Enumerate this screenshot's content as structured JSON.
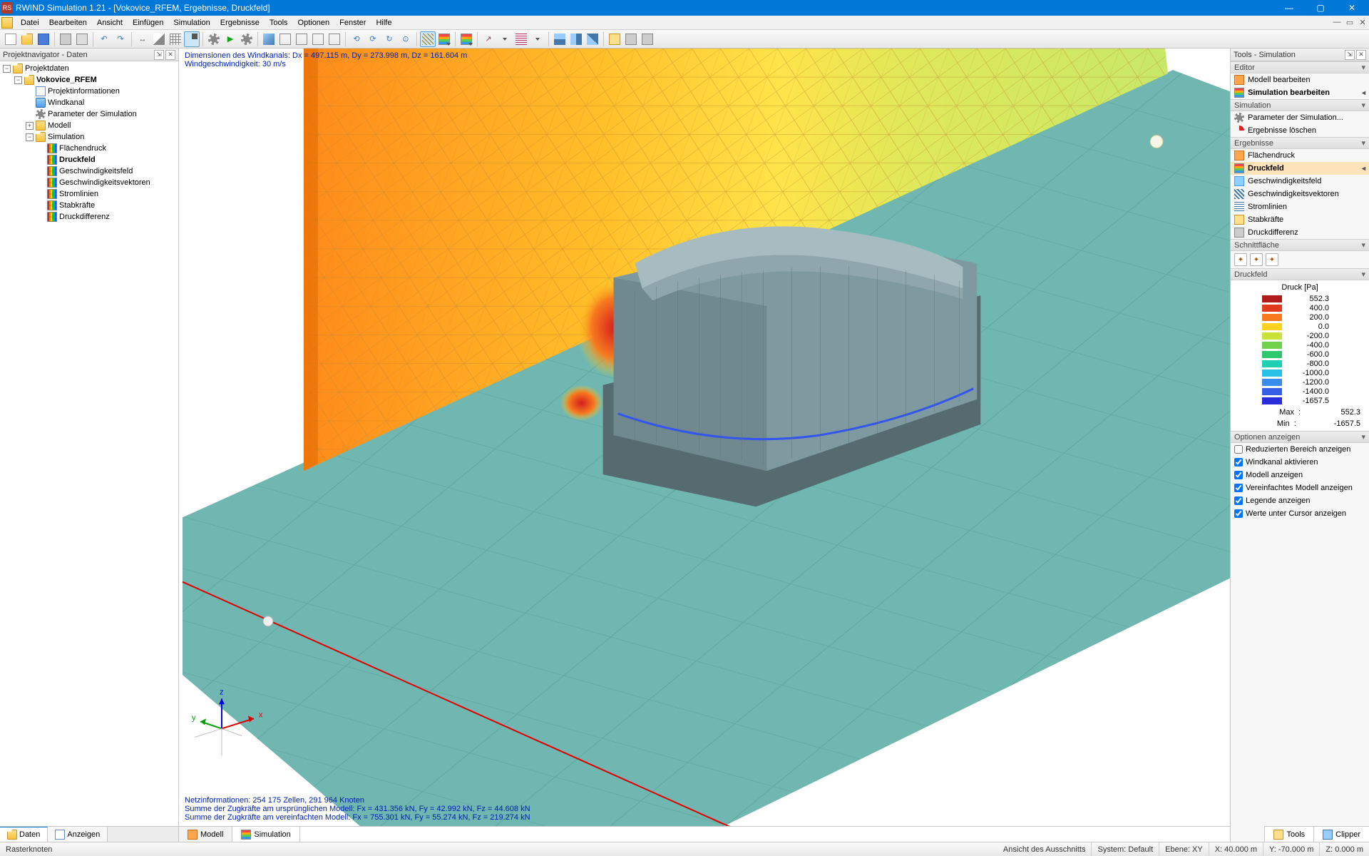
{
  "title": "RWIND Simulation 1.21 - [Vokovice_RFEM, Ergebnisse, Druckfeld]",
  "menu": [
    "Datei",
    "Bearbeiten",
    "Ansicht",
    "Einfügen",
    "Simulation",
    "Ergebnisse",
    "Tools",
    "Optionen",
    "Fenster",
    "Hilfe"
  ],
  "left_panel": {
    "title": "Projektnavigator - Daten",
    "tabs": [
      {
        "label": "Daten",
        "active": true
      },
      {
        "label": "Anzeigen",
        "active": false
      }
    ],
    "tree": [
      {
        "depth": 0,
        "exp": "-",
        "icon": "folder-open",
        "label": "Projektdaten",
        "bold": false
      },
      {
        "depth": 1,
        "exp": "-",
        "icon": "folder-open",
        "label": "Vokovice_RFEM",
        "bold": true
      },
      {
        "depth": 2,
        "exp": "",
        "icon": "doc",
        "label": "Projektinformationen"
      },
      {
        "depth": 2,
        "exp": "",
        "icon": "tube",
        "label": "Windkanal"
      },
      {
        "depth": 2,
        "exp": "",
        "icon": "gear",
        "label": "Parameter der Simulation"
      },
      {
        "depth": 2,
        "exp": "+",
        "icon": "folder",
        "label": "Modell"
      },
      {
        "depth": 2,
        "exp": "-",
        "icon": "folder-open",
        "label": "Simulation"
      },
      {
        "depth": 3,
        "exp": "",
        "icon": "bars",
        "label": "Flächendruck"
      },
      {
        "depth": 3,
        "exp": "",
        "icon": "bars",
        "label": "Druckfeld",
        "bold": true
      },
      {
        "depth": 3,
        "exp": "",
        "icon": "bars",
        "label": "Geschwindigkeitsfeld"
      },
      {
        "depth": 3,
        "exp": "",
        "icon": "bars",
        "label": "Geschwindigkeitsvektoren"
      },
      {
        "depth": 3,
        "exp": "",
        "icon": "bars",
        "label": "Stromlinien"
      },
      {
        "depth": 3,
        "exp": "",
        "icon": "bars",
        "label": "Stabkräfte"
      },
      {
        "depth": 3,
        "exp": "",
        "icon": "bars",
        "label": "Druckdifferenz"
      }
    ]
  },
  "viewport": {
    "top_text": [
      "Dimensionen des Windkanals: Dx = 497.115 m, Dy = 273.998 m, Dz = 161.604 m",
      "Windgeschwindigkeit: 30 m/s"
    ],
    "bottom_text": [
      "Netzinformationen: 254 175 Zellen, 291 964 Knoten",
      "Summe der Zugkräfte am ursprünglichen Modell: Fx = 431.356 kN, Fy = 42.992 kN, Fz = 44.608 kN",
      "Summe der Zugkräfte am vereinfachten Modell: Fx = 755.301 kN, Fy = 55.274 kN, Fz = 219.274 kN"
    ],
    "tabs": [
      {
        "label": "Modell",
        "active": false
      },
      {
        "label": "Simulation",
        "active": true
      }
    ],
    "axes": {
      "x": "x",
      "y": "y",
      "z": "z"
    },
    "colors": {
      "ground": "#6fb7b0",
      "ground_dark": "#4f938c",
      "wall_gradient": [
        "#ff7a00",
        "#ffb400",
        "#ffe137",
        "#d6e85a",
        "#b6e36a"
      ],
      "wall_edge_dark": "#c25800",
      "building": "#7e9aa0",
      "building_light": "#a6bcc1",
      "building_dark": "#556b70",
      "hotspot": "#d41e1e",
      "axis_x": "#e00000",
      "axis_y": "#00a000",
      "axis_z": "#0000e0"
    }
  },
  "right_panel": {
    "title": "Tools - Simulation",
    "sections": {
      "editor": {
        "title": "Editor",
        "items": [
          {
            "label": "Modell bearbeiten"
          },
          {
            "label": "Simulation bearbeiten",
            "bold": true,
            "arrow": true
          }
        ]
      },
      "simulation": {
        "title": "Simulation",
        "items": [
          {
            "label": "Parameter der Simulation..."
          },
          {
            "label": "Ergebnisse löschen"
          }
        ]
      },
      "ergebnisse": {
        "title": "Ergebnisse",
        "items": [
          {
            "label": "Flächendruck"
          },
          {
            "label": "Druckfeld",
            "selected": true,
            "arrow": true
          },
          {
            "label": "Geschwindigkeitsfeld"
          },
          {
            "label": "Geschwindigkeitsvektoren"
          },
          {
            "label": "Stromlinien"
          },
          {
            "label": "Stabkräfte"
          },
          {
            "label": "Druckdifferenz"
          }
        ]
      },
      "schnittflache": {
        "title": "Schnittfläche"
      },
      "druckfeld": {
        "title": "Druckfeld",
        "legend_title": "Druck [Pa]",
        "legend": [
          {
            "color": "#b11b1b",
            "value": "552.3"
          },
          {
            "color": "#e23a1f",
            "value": "400.0"
          },
          {
            "color": "#f77a1e",
            "value": "200.0"
          },
          {
            "color": "#ffd21f",
            "value": "0.0"
          },
          {
            "color": "#c8e23a",
            "value": "-200.0"
          },
          {
            "color": "#6fd24a",
            "value": "-400.0"
          },
          {
            "color": "#2ec96d",
            "value": "-600.0"
          },
          {
            "color": "#1fd0b2",
            "value": "-800.0"
          },
          {
            "color": "#28c2e8",
            "value": "-1000.0"
          },
          {
            "color": "#3a8ef0",
            "value": "-1200.0"
          },
          {
            "color": "#355fe6",
            "value": "-1400.0"
          },
          {
            "color": "#2a2ddc",
            "value": "-1657.5"
          }
        ],
        "extremes": {
          "max_label": "Max",
          "max_value": "552.3",
          "min_label": "Min",
          "min_value": "-1657.5"
        }
      },
      "optionen": {
        "title": "Optionen anzeigen",
        "items": [
          {
            "label": "Reduzierten Bereich anzeigen",
            "checked": false
          },
          {
            "label": "Windkanal aktivieren",
            "checked": true
          },
          {
            "label": "Modell anzeigen",
            "checked": true
          },
          {
            "label": "Vereinfachtes Modell anzeigen",
            "checked": true
          },
          {
            "label": "Legende anzeigen",
            "checked": true
          },
          {
            "label": "Werte unter Cursor anzeigen",
            "checked": true
          }
        ]
      }
    },
    "tabs": [
      {
        "label": "Tools"
      },
      {
        "label": "Clipper"
      }
    ]
  },
  "statusbar": {
    "left": "Rasterknoten",
    "cells": [
      "Ansicht des Ausschnitts",
      "System: Default",
      "Ebene: XY",
      "X: 40.000 m",
      "Y: -70.000 m",
      "Z: 0.000 m"
    ]
  }
}
